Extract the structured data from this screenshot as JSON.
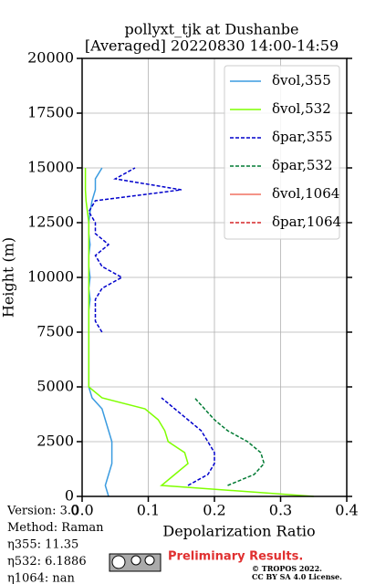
{
  "chart_data": {
    "type": "profile",
    "title": "pollyxt_tjk at Dushanbe",
    "subtitle": "[Averaged] 20220830 14:00-14:59",
    "xlabel": "Depolarization Ratio",
    "ylabel": "Height (m)",
    "xlim": [
      0,
      0.4
    ],
    "xticks": [
      {
        "value": 0,
        "label": "0.0"
      },
      {
        "value": 0.1,
        "label": "0.1"
      },
      {
        "value": 0.2,
        "label": "0.2"
      },
      {
        "value": 0.3,
        "label": "0.3"
      },
      {
        "value": 0.4,
        "label": "0.4"
      }
    ],
    "ylim": [
      0,
      20000
    ],
    "yticks": [
      0,
      2500,
      5000,
      7500,
      10000,
      12500,
      15000,
      17500,
      20000
    ],
    "grid": true,
    "legend": "upper right",
    "heights": [
      0,
      500,
      1000,
      1500,
      2000,
      2500,
      3000,
      3500,
      4000,
      4500,
      5000,
      5500,
      6000,
      6500,
      7000,
      7500,
      8000,
      8500,
      9000,
      9500,
      10000,
      10500,
      11000,
      11500,
      12000,
      12500,
      13000,
      13500,
      14000,
      14500,
      15000
    ],
    "series": [
      {
        "name": "δvol,355",
        "color": "#3a9be0",
        "dash": false,
        "values": [
          0.04,
          0.035,
          0.04,
          0.045,
          0.045,
          0.045,
          0.04,
          0.035,
          0.03,
          0.015,
          0.01,
          0.01,
          0.01,
          0.01,
          0.01,
          0.01,
          0.01,
          0.01,
          0.012,
          0.01,
          0.012,
          0.01,
          0.01,
          0.012,
          0.01,
          0.01,
          0.012,
          0.015,
          0.02,
          0.02,
          0.03
        ]
      },
      {
        "name": "δvol,532",
        "color": "#7fff00",
        "dash": false,
        "values": [
          0.35,
          0.12,
          0.14,
          0.16,
          0.155,
          0.13,
          0.125,
          0.115,
          0.095,
          0.03,
          0.01,
          0.01,
          0.01,
          0.01,
          0.01,
          0.01,
          0.01,
          0.01,
          0.01,
          0.01,
          0.01,
          0.01,
          0.01,
          0.01,
          0.01,
          0.01,
          0.008,
          0.006,
          0.005,
          0.005,
          0.005
        ]
      },
      {
        "name": "δpar,355",
        "color": "#0000cc",
        "dash": true,
        "values": [
          null,
          0.16,
          0.19,
          0.2,
          0.2,
          0.19,
          0.18,
          0.16,
          0.14,
          0.12,
          null,
          null,
          null,
          null,
          null,
          0.03,
          0.02,
          0.02,
          0.02,
          0.03,
          0.06,
          0.03,
          0.02,
          0.04,
          0.02,
          0.02,
          0.01,
          0.02,
          0.15,
          0.05,
          0.08
        ]
      },
      {
        "name": "δpar,532",
        "color": "#007a33",
        "dash": true,
        "values": [
          null,
          0.22,
          0.26,
          0.275,
          0.27,
          0.25,
          0.22,
          0.2,
          0.185,
          0.17,
          null,
          null,
          null,
          null,
          null,
          null,
          null,
          null,
          null,
          null,
          null,
          null,
          null,
          null,
          null,
          null,
          null,
          null,
          null,
          null,
          null
        ]
      },
      {
        "name": "δvol,1064",
        "color": "#f07060",
        "dash": false,
        "values": []
      },
      {
        "name": "δpar,1064",
        "color": "#d62728",
        "dash": true,
        "values": []
      }
    ],
    "footer": [
      "Version: 3.0",
      "Method: Raman",
      "η355:  11.35",
      "η532: 6.1886",
      "η1064:    nan"
    ],
    "stamp": "Preliminary Results.",
    "license": [
      "© TROPOS 2022.",
      "CC BY SA 4.0 License."
    ]
  }
}
